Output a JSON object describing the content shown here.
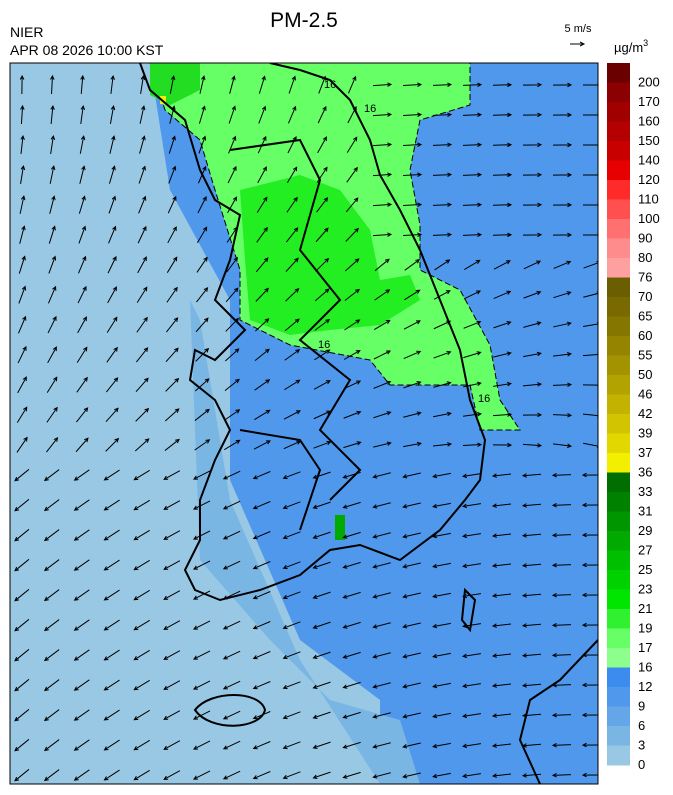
{
  "header": {
    "title": "PM-2.5",
    "agency": "NIER",
    "timestamp": "APR 08 2026 10:00 KST"
  },
  "wind_legend": {
    "label": "5 m/s"
  },
  "colorbar": {
    "unit": "µg/m",
    "unit_exponent": "3",
    "levels": [
      {
        "label": "200",
        "color": "#6b0000"
      },
      {
        "label": "170",
        "color": "#8b0000"
      },
      {
        "label": "160",
        "color": "#a00000"
      },
      {
        "label": "150",
        "color": "#b40000"
      },
      {
        "label": "140",
        "color": "#c80000"
      },
      {
        "label": "120",
        "color": "#e60000"
      },
      {
        "label": "110",
        "color": "#ff2a2a"
      },
      {
        "label": "100",
        "color": "#ff5050"
      },
      {
        "label": "90",
        "color": "#ff7070"
      },
      {
        "label": "80",
        "color": "#ff8c8c"
      },
      {
        "label": "76",
        "color": "#ffa0a0"
      },
      {
        "label": "70",
        "color": "#6b5e00"
      },
      {
        "label": "65",
        "color": "#786a00"
      },
      {
        "label": "60",
        "color": "#857600"
      },
      {
        "label": "55",
        "color": "#948400"
      },
      {
        "label": "50",
        "color": "#a49300"
      },
      {
        "label": "46",
        "color": "#b3a300"
      },
      {
        "label": "42",
        "color": "#c3b300"
      },
      {
        "label": "39",
        "color": "#d2c400"
      },
      {
        "label": "37",
        "color": "#e2d800"
      },
      {
        "label": "36",
        "color": "#f2f000"
      },
      {
        "label": "33",
        "color": "#006e00"
      },
      {
        "label": "31",
        "color": "#008200"
      },
      {
        "label": "29",
        "color": "#009600"
      },
      {
        "label": "27",
        "color": "#00aa00"
      },
      {
        "label": "25",
        "color": "#00be00"
      },
      {
        "label": "23",
        "color": "#00d200"
      },
      {
        "label": "21",
        "color": "#00e600"
      },
      {
        "label": "19",
        "color": "#30f030"
      },
      {
        "label": "17",
        "color": "#66ff66"
      },
      {
        "label": "16",
        "color": "#8cff8c"
      },
      {
        "label": "12",
        "color": "#3c8cf0"
      },
      {
        "label": "9",
        "color": "#4f98ec"
      },
      {
        "label": "6",
        "color": "#64a6e8"
      },
      {
        "label": "3",
        "color": "#7ab6e4"
      },
      {
        "label": "0",
        "color": "#98c8e4"
      }
    ]
  },
  "contour_labels": [
    "16",
    "16",
    "16",
    "16"
  ]
}
